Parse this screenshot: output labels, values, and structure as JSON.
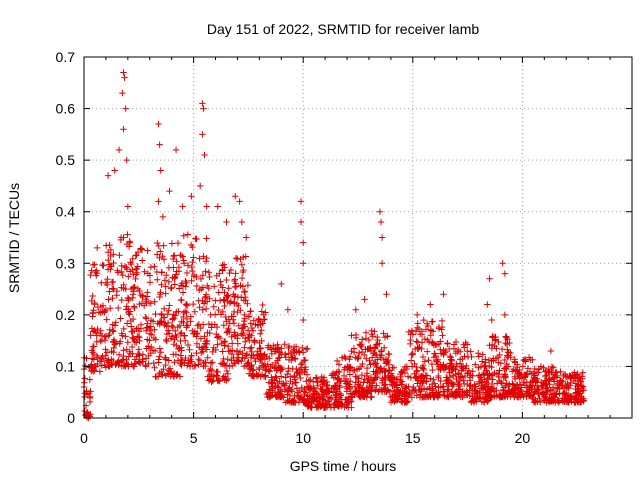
{
  "chart_data": {
    "type": "scatter",
    "title": "Day 151 of 2022, SRMTID for receiver lamb",
    "xlabel": "GPS time / hours",
    "ylabel": "SRMTID / TECUs",
    "xlim": [
      0,
      25
    ],
    "ylim": [
      0,
      0.7
    ],
    "x_ticks": [
      "0",
      "5",
      "10",
      "15",
      "20"
    ],
    "y_ticks": [
      "0",
      "0.1",
      "0.2",
      "0.3",
      "0.4",
      "0.5",
      "0.6",
      "0.7"
    ],
    "grid": true,
    "marker": "+",
    "color": "#e00000",
    "series": [
      {
        "name": "SRMTID",
        "segments": [
          {
            "x0": 0.0,
            "x1": 0.3,
            "lo": 0.0,
            "hi": 0.12
          },
          {
            "x0": 0.3,
            "x1": 1.0,
            "lo": 0.09,
            "hi": 0.3
          },
          {
            "x0": 1.0,
            "x1": 2.2,
            "lo": 0.1,
            "hi": 0.36
          },
          {
            "x0": 2.2,
            "x1": 3.2,
            "lo": 0.1,
            "hi": 0.33
          },
          {
            "x0": 3.2,
            "x1": 4.4,
            "lo": 0.08,
            "hi": 0.34
          },
          {
            "x0": 4.4,
            "x1": 5.6,
            "lo": 0.1,
            "hi": 0.36
          },
          {
            "x0": 5.6,
            "x1": 6.6,
            "lo": 0.07,
            "hi": 0.3
          },
          {
            "x0": 6.6,
            "x1": 7.5,
            "lo": 0.1,
            "hi": 0.32
          },
          {
            "x0": 7.5,
            "x1": 8.3,
            "lo": 0.08,
            "hi": 0.22
          },
          {
            "x0": 8.3,
            "x1": 9.2,
            "lo": 0.04,
            "hi": 0.15
          },
          {
            "x0": 9.2,
            "x1": 10.2,
            "lo": 0.03,
            "hi": 0.14
          },
          {
            "x0": 10.2,
            "x1": 11.2,
            "lo": 0.02,
            "hi": 0.08
          },
          {
            "x0": 11.2,
            "x1": 12.2,
            "lo": 0.02,
            "hi": 0.12
          },
          {
            "x0": 12.2,
            "x1": 13.2,
            "lo": 0.04,
            "hi": 0.17
          },
          {
            "x0": 13.2,
            "x1": 14.0,
            "lo": 0.05,
            "hi": 0.17
          },
          {
            "x0": 14.0,
            "x1": 14.8,
            "lo": 0.03,
            "hi": 0.1
          },
          {
            "x0": 14.8,
            "x1": 16.4,
            "lo": 0.04,
            "hi": 0.19
          },
          {
            "x0": 16.4,
            "x1": 17.6,
            "lo": 0.04,
            "hi": 0.15
          },
          {
            "x0": 17.6,
            "x1": 18.5,
            "lo": 0.03,
            "hi": 0.13
          },
          {
            "x0": 18.5,
            "x1": 19.5,
            "lo": 0.04,
            "hi": 0.16
          },
          {
            "x0": 19.5,
            "x1": 20.5,
            "lo": 0.04,
            "hi": 0.12
          },
          {
            "x0": 20.5,
            "x1": 21.5,
            "lo": 0.03,
            "hi": 0.1
          },
          {
            "x0": 21.5,
            "x1": 22.8,
            "lo": 0.03,
            "hi": 0.09
          }
        ],
        "peaks": [
          {
            "x": 0.0,
            "y": 0.06
          },
          {
            "x": 0.2,
            "y": 0.0
          },
          {
            "x": 0.6,
            "y": 0.33
          },
          {
            "x": 1.1,
            "y": 0.47
          },
          {
            "x": 1.4,
            "y": 0.48
          },
          {
            "x": 1.6,
            "y": 0.52
          },
          {
            "x": 1.75,
            "y": 0.63
          },
          {
            "x": 1.8,
            "y": 0.67
          },
          {
            "x": 1.85,
            "y": 0.66
          },
          {
            "x": 1.9,
            "y": 0.6
          },
          {
            "x": 1.8,
            "y": 0.56
          },
          {
            "x": 1.95,
            "y": 0.5
          },
          {
            "x": 2.0,
            "y": 0.41
          },
          {
            "x": 2.1,
            "y": 0.34
          },
          {
            "x": 3.4,
            "y": 0.57
          },
          {
            "x": 3.45,
            "y": 0.53
          },
          {
            "x": 3.5,
            "y": 0.48
          },
          {
            "x": 3.4,
            "y": 0.42
          },
          {
            "x": 3.6,
            "y": 0.39
          },
          {
            "x": 3.9,
            "y": 0.44
          },
          {
            "x": 4.2,
            "y": 0.52
          },
          {
            "x": 4.5,
            "y": 0.41
          },
          {
            "x": 4.9,
            "y": 0.43
          },
          {
            "x": 5.4,
            "y": 0.61
          },
          {
            "x": 5.45,
            "y": 0.6
          },
          {
            "x": 5.4,
            "y": 0.55
          },
          {
            "x": 5.5,
            "y": 0.51
          },
          {
            "x": 5.3,
            "y": 0.45
          },
          {
            "x": 5.6,
            "y": 0.41
          },
          {
            "x": 6.1,
            "y": 0.41
          },
          {
            "x": 6.5,
            "y": 0.38
          },
          {
            "x": 6.9,
            "y": 0.43
          },
          {
            "x": 7.1,
            "y": 0.42
          },
          {
            "x": 7.2,
            "y": 0.38
          },
          {
            "x": 7.4,
            "y": 0.35
          },
          {
            "x": 9.0,
            "y": 0.26
          },
          {
            "x": 9.3,
            "y": 0.21
          },
          {
            "x": 9.9,
            "y": 0.42
          },
          {
            "x": 9.9,
            "y": 0.38
          },
          {
            "x": 10.0,
            "y": 0.34
          },
          {
            "x": 10.0,
            "y": 0.3
          },
          {
            "x": 10.0,
            "y": 0.19
          },
          {
            "x": 12.4,
            "y": 0.21
          },
          {
            "x": 12.8,
            "y": 0.23
          },
          {
            "x": 13.5,
            "y": 0.4
          },
          {
            "x": 13.55,
            "y": 0.38
          },
          {
            "x": 13.6,
            "y": 0.35
          },
          {
            "x": 13.6,
            "y": 0.3
          },
          {
            "x": 13.8,
            "y": 0.24
          },
          {
            "x": 15.2,
            "y": 0.2
          },
          {
            "x": 15.8,
            "y": 0.22
          },
          {
            "x": 16.4,
            "y": 0.24
          },
          {
            "x": 18.4,
            "y": 0.22
          },
          {
            "x": 18.5,
            "y": 0.27
          },
          {
            "x": 18.6,
            "y": 0.19
          },
          {
            "x": 19.1,
            "y": 0.3
          },
          {
            "x": 19.2,
            "y": 0.28
          },
          {
            "x": 19.2,
            "y": 0.2
          },
          {
            "x": 21.3,
            "y": 0.13
          }
        ]
      }
    ]
  }
}
